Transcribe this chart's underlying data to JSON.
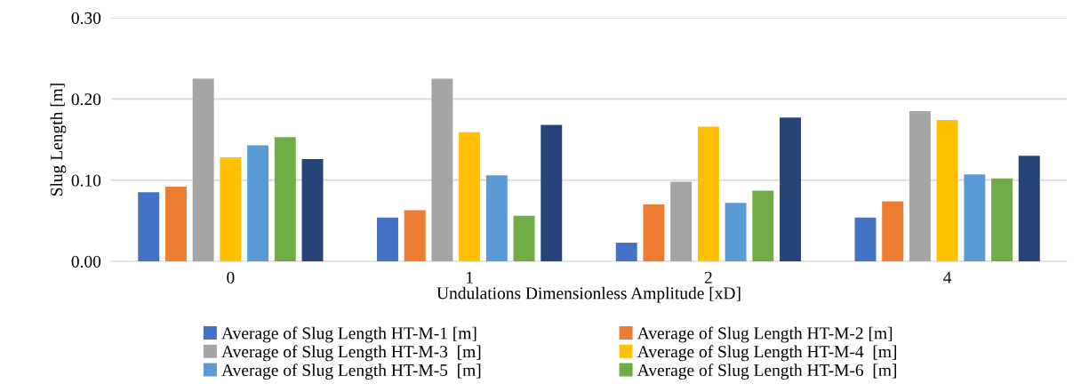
{
  "chart_data": {
    "type": "bar",
    "xlabel": "Undulations Dimensionless Amplitude [xD]",
    "ylabel": "Slug Length [m]",
    "categories": [
      "0",
      "1",
      "2",
      "4"
    ],
    "series": [
      {
        "name": "Average of Slug Length HT-M-1 [m]",
        "color": "#4472c4",
        "values": [
          0.085,
          0.054,
          0.023,
          0.054
        ]
      },
      {
        "name": "Average of Slug Length HT-M-2 [m]",
        "color": "#ed7d31",
        "values": [
          0.092,
          0.063,
          0.07,
          0.074
        ]
      },
      {
        "name": "Average of Slug Length HT-M-3  [m]",
        "color": "#a5a5a5",
        "values": [
          0.225,
          0.225,
          0.098,
          0.185
        ]
      },
      {
        "name": "Average of Slug Length HT-M-4  [m]",
        "color": "#ffc000",
        "values": [
          0.128,
          0.159,
          0.166,
          0.174
        ]
      },
      {
        "name": "Average of Slug Length HT-M-5  [m]",
        "color": "#5b9bd5",
        "values": [
          0.143,
          0.106,
          0.072,
          0.107
        ]
      },
      {
        "name": "Average of Slug Length HT-M-6  [m]",
        "color": "#70ad47",
        "values": [
          0.153,
          0.056,
          0.087,
          0.102
        ]
      },
      {
        "color": "#264478",
        "values": [
          0.126,
          0.168,
          0.177,
          0.13
        ]
      }
    ],
    "ylim": [
      0,
      0.3
    ],
    "yticks": [
      {
        "value": 0,
        "label": "0.00"
      },
      {
        "value": 0.1,
        "label": "0.10"
      },
      {
        "value": 0.2,
        "label": "0.20"
      },
      {
        "value": 0.3,
        "label": "0.30"
      }
    ],
    "grid": "y",
    "legend": "bottom"
  }
}
